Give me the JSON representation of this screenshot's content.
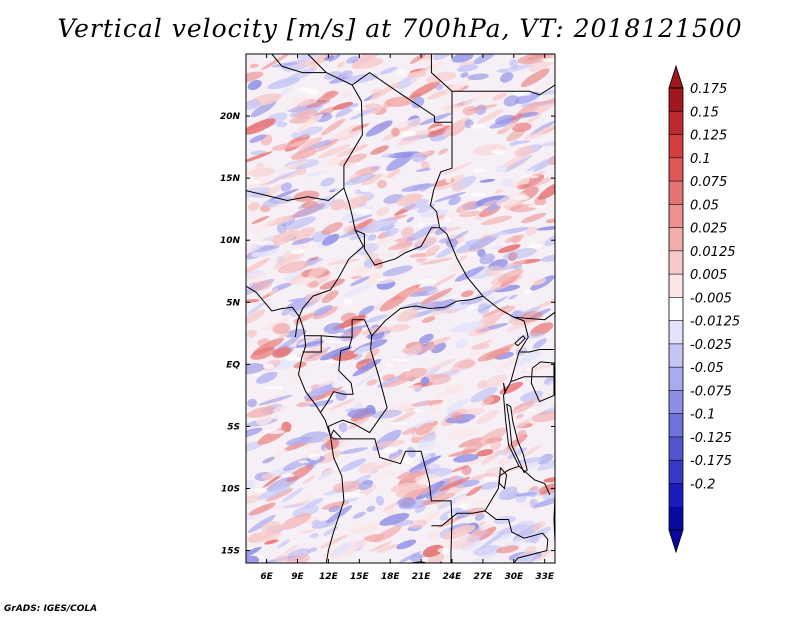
{
  "figure": {
    "title": "Vertical velocity [m/s] at 700hPa, VT: 2018121500",
    "credit": "GrADS: IGES/COLA"
  },
  "map": {
    "variable": "Vertical velocity",
    "units": "m/s",
    "level": "700hPa",
    "valid_time": "2018121500",
    "lon_range": [
      4,
      34
    ],
    "lat_range": [
      -16,
      25
    ],
    "lon_ticks": [
      {
        "value": 6,
        "label": "6E"
      },
      {
        "value": 9,
        "label": "9E"
      },
      {
        "value": 12,
        "label": "12E"
      },
      {
        "value": 15,
        "label": "15E"
      },
      {
        "value": 18,
        "label": "18E"
      },
      {
        "value": 21,
        "label": "21E"
      },
      {
        "value": 24,
        "label": "24E"
      },
      {
        "value": 27,
        "label": "27E"
      },
      {
        "value": 30,
        "label": "30E"
      },
      {
        "value": 33,
        "label": "33E"
      }
    ],
    "lat_ticks": [
      {
        "value": 20,
        "label": "20N"
      },
      {
        "value": 15,
        "label": "15N"
      },
      {
        "value": 10,
        "label": "10N"
      },
      {
        "value": 5,
        "label": "5N"
      },
      {
        "value": 0,
        "label": "EQ"
      },
      {
        "value": -5,
        "label": "5S"
      },
      {
        "value": -10,
        "label": "10S"
      },
      {
        "value": -15,
        "label": "15S"
      }
    ],
    "borders": [
      [
        [
          6.5,
          25
        ],
        [
          7.5,
          24
        ],
        [
          9.5,
          23.5
        ],
        [
          11.8,
          23.5
        ],
        [
          14.3,
          22.5
        ],
        [
          15.2,
          21.2
        ],
        [
          15.3,
          18.5
        ],
        [
          13.5,
          16
        ],
        [
          13.5,
          14.2
        ]
      ],
      [
        [
          10,
          25
        ],
        [
          11.8,
          23.5
        ]
      ],
      [
        [
          14.3,
          22.5
        ],
        [
          16,
          23.5
        ],
        [
          19,
          21.8
        ],
        [
          22.3,
          20
        ],
        [
          22.3,
          19.5
        ],
        [
          24,
          19.5
        ],
        [
          24,
          20
        ]
      ],
      [
        [
          22,
          25
        ],
        [
          22,
          23.5
        ],
        [
          24,
          22
        ],
        [
          24,
          20
        ]
      ],
      [
        [
          24,
          22
        ],
        [
          31.5,
          22
        ],
        [
          32.5,
          21.7
        ],
        [
          34,
          22.5
        ]
      ],
      [
        [
          4,
          14
        ],
        [
          6,
          13.6
        ],
        [
          8,
          13.2
        ],
        [
          10,
          13.5
        ],
        [
          12,
          13.2
        ],
        [
          13.5,
          14.2
        ]
      ],
      [
        [
          13.5,
          14.2
        ],
        [
          14,
          13
        ],
        [
          14.3,
          12
        ],
        [
          14.6,
          10.8
        ],
        [
          15.4,
          9.5
        ],
        [
          14,
          8.5
        ],
        [
          13,
          7
        ],
        [
          12.2,
          6
        ],
        [
          10.5,
          5.5
        ],
        [
          9.5,
          4.5
        ],
        [
          9,
          3.5
        ],
        [
          8.8,
          2.2
        ]
      ],
      [
        [
          14.6,
          10.8
        ],
        [
          15.5,
          10.5
        ],
        [
          15.5,
          9.3
        ],
        [
          16.5,
          8
        ],
        [
          18.5,
          8.5
        ],
        [
          19.5,
          9
        ],
        [
          21,
          9.5
        ],
        [
          22,
          11
        ],
        [
          22.8,
          11
        ],
        [
          22.5,
          12.3
        ],
        [
          21.9,
          12.8
        ],
        [
          22.2,
          14
        ],
        [
          22.9,
          15.5
        ],
        [
          24,
          15.8
        ],
        [
          24,
          19.5
        ]
      ],
      [
        [
          22.8,
          11
        ],
        [
          23.5,
          10.5
        ],
        [
          24.5,
          8.5
        ],
        [
          25.5,
          7
        ],
        [
          27,
          5.5
        ],
        [
          28.5,
          4.5
        ],
        [
          30,
          3.8
        ],
        [
          31,
          3.5
        ]
      ],
      [
        [
          14.3,
          3.6
        ],
        [
          15.5,
          3.6
        ],
        [
          16.2,
          2.3
        ],
        [
          17.5,
          3.5
        ],
        [
          19,
          4.5
        ],
        [
          20.5,
          4.7
        ],
        [
          21.8,
          4.5
        ],
        [
          23.3,
          4.6
        ],
        [
          24.5,
          5.1
        ],
        [
          25.8,
          5.2
        ],
        [
          27,
          5.5
        ]
      ],
      [
        [
          9.7,
          2.3
        ],
        [
          11.3,
          2.3
        ],
        [
          13,
          2.2
        ],
        [
          14.3,
          2.2
        ],
        [
          14.3,
          3.6
        ]
      ],
      [
        [
          11.3,
          2.3
        ],
        [
          11.3,
          1
        ],
        [
          9.5,
          1
        ]
      ],
      [
        [
          16.2,
          2.3
        ],
        [
          16.1,
          1.2
        ],
        [
          16.9,
          -1
        ],
        [
          17.7,
          -3.5
        ],
        [
          16,
          -5.5
        ],
        [
          14.5,
          -4.8
        ],
        [
          13.4,
          -4.5
        ],
        [
          12.8,
          -4.7
        ],
        [
          12,
          -5
        ]
      ],
      [
        [
          14.3,
          2.2
        ],
        [
          14,
          1.3
        ],
        [
          13.2,
          1.1
        ],
        [
          13,
          -0.5
        ],
        [
          14.2,
          -1.5
        ],
        [
          14.4,
          -2.4
        ],
        [
          13.5,
          -2.4
        ],
        [
          12.5,
          -2.2
        ],
        [
          11.8,
          -3.2
        ],
        [
          11.2,
          -3.9
        ]
      ],
      [
        [
          12,
          -5
        ],
        [
          12.2,
          -5.8
        ],
        [
          12.5,
          -6
        ],
        [
          13,
          -6
        ],
        [
          16.5,
          -6
        ],
        [
          17,
          -7.5
        ],
        [
          19,
          -8
        ],
        [
          19.5,
          -7
        ],
        [
          21,
          -7
        ],
        [
          21.8,
          -9.5
        ],
        [
          22,
          -11
        ],
        [
          23.9,
          -11
        ],
        [
          24,
          -12.5
        ],
        [
          23.9,
          -15
        ],
        [
          23.9,
          -16
        ]
      ],
      [
        [
          12.2,
          -5.8
        ],
        [
          12.5,
          -5.3
        ],
        [
          13.2,
          -5.9
        ]
      ],
      [
        [
          31,
          3.5
        ],
        [
          31.4,
          2.2
        ],
        [
          30.5,
          1
        ],
        [
          29.7,
          -1.4
        ],
        [
          29,
          -2.5
        ],
        [
          29.2,
          -4.5
        ],
        [
          29.5,
          -6.5
        ],
        [
          30.5,
          -8.2
        ],
        [
          32,
          -9.3
        ],
        [
          33,
          -9.6
        ],
        [
          33.5,
          -10.5
        ]
      ],
      [
        [
          30.5,
          1
        ],
        [
          31.5,
          1
        ],
        [
          32.5,
          1.2
        ],
        [
          33.9,
          1.2
        ]
      ],
      [
        [
          29.7,
          -1.4
        ],
        [
          31,
          -1
        ],
        [
          33.9,
          -1
        ]
      ],
      [
        [
          30,
          3.8
        ],
        [
          33,
          3.6
        ],
        [
          34,
          4.2
        ]
      ],
      [
        [
          22,
          -13
        ],
        [
          23,
          -13
        ],
        [
          24.5,
          -12
        ],
        [
          26,
          -12
        ],
        [
          27.2,
          -11.8
        ],
        [
          28.5,
          -10
        ],
        [
          28.6,
          -9
        ],
        [
          29.5,
          -8.5
        ],
        [
          30.5,
          -8.2
        ]
      ],
      [
        [
          27.2,
          -11.8
        ],
        [
          28.3,
          -12.5
        ],
        [
          29.5,
          -12.5
        ],
        [
          29.8,
          -13.5
        ],
        [
          31,
          -14
        ],
        [
          32.8,
          -13.6
        ],
        [
          33.3,
          -14.1
        ],
        [
          33.2,
          -15
        ],
        [
          30.4,
          -15.6
        ],
        [
          30,
          -16
        ]
      ],
      [
        [
          20,
          -16
        ],
        [
          21,
          -15.9
        ],
        [
          22.5,
          -16.2
        ],
        [
          23,
          -15.9
        ]
      ]
    ],
    "coast": [
      [
        [
          4,
          6.3
        ],
        [
          5,
          5.8
        ],
        [
          6.5,
          4.3
        ],
        [
          7.5,
          4.5
        ],
        [
          8.5,
          4.6
        ],
        [
          9.2,
          3.8
        ],
        [
          9.6,
          2.8
        ],
        [
          9.8,
          1.5
        ],
        [
          9.4,
          0.5
        ],
        [
          9.1,
          -0.8
        ],
        [
          9.8,
          -2.2
        ],
        [
          10.8,
          -3.3
        ],
        [
          11.7,
          -4.5
        ],
        [
          12.2,
          -5.8
        ],
        [
          12.5,
          -7.5
        ],
        [
          13.3,
          -9
        ],
        [
          13.5,
          -11
        ],
        [
          12.5,
          -13.5
        ],
        [
          12,
          -15
        ],
        [
          11.8,
          -16
        ]
      ]
    ],
    "lakes": [
      [
        [
          29.3,
          -3.2
        ],
        [
          29.6,
          -4.8
        ],
        [
          29.8,
          -6.5
        ],
        [
          30.4,
          -7.6
        ],
        [
          31,
          -8.7
        ],
        [
          31.3,
          -8.5
        ],
        [
          30.9,
          -7.2
        ],
        [
          30.4,
          -6.2
        ],
        [
          29.9,
          -4.6
        ],
        [
          29.7,
          -3.4
        ],
        [
          29.3,
          -3.2
        ]
      ],
      [
        [
          28.7,
          -8.3
        ],
        [
          29.3,
          -8.9
        ],
        [
          29.1,
          -10
        ],
        [
          28.6,
          -9.6
        ],
        [
          28.7,
          -8.3
        ]
      ],
      [
        [
          34,
          -9.8
        ],
        [
          34.3,
          -10.5
        ],
        [
          34.6,
          -12
        ],
        [
          34.4,
          -14
        ],
        [
          34.8,
          -14.2
        ],
        [
          34,
          -14.3
        ],
        [
          33.9,
          -12.5
        ],
        [
          34,
          -10.5
        ],
        [
          34,
          -9.8
        ]
      ],
      [
        [
          29,
          -1.5
        ],
        [
          29.2,
          -2.3
        ],
        [
          29.1,
          -2.1
        ],
        [
          29,
          -1.5
        ]
      ],
      [
        [
          31.8,
          -0.3
        ],
        [
          32.6,
          0.2
        ],
        [
          33.9,
          0.1
        ],
        [
          33.9,
          -2.5
        ],
        [
          32.5,
          -3
        ],
        [
          31.7,
          -1.5
        ],
        [
          31.8,
          -0.3
        ]
      ],
      [
        [
          30.1,
          1.7
        ],
        [
          30.9,
          2.3
        ],
        [
          31.1,
          2.1
        ],
        [
          30.4,
          1.5
        ],
        [
          30.1,
          1.7
        ]
      ]
    ],
    "colorbar": {
      "top_value": "0.175",
      "labels": [
        "0.175",
        "0.15",
        "0.125",
        "0.1",
        "0.075",
        "0.05",
        "0.025",
        "0.0125",
        "0.005",
        "-0.005",
        "-0.0125",
        "-0.025",
        "-0.05",
        "-0.075",
        "-0.1",
        "-0.125",
        "-0.175",
        "-0.2"
      ],
      "colors": [
        "#a0171e",
        "#bc2a2f",
        "#d53e3e",
        "#e05757",
        "#e67373",
        "#ec9090",
        "#f2adad",
        "#f7caca",
        "#fbe5e5",
        "#ffffff",
        "#e3e3fb",
        "#c6c6f6",
        "#aaaaee",
        "#8e8ee5",
        "#7171dc",
        "#5555d2",
        "#3838c8",
        "#1c1cbc",
        "#0a0aa0"
      ],
      "top_color": "#a0171e",
      "bottom_color": "#0a0aa0"
    }
  }
}
